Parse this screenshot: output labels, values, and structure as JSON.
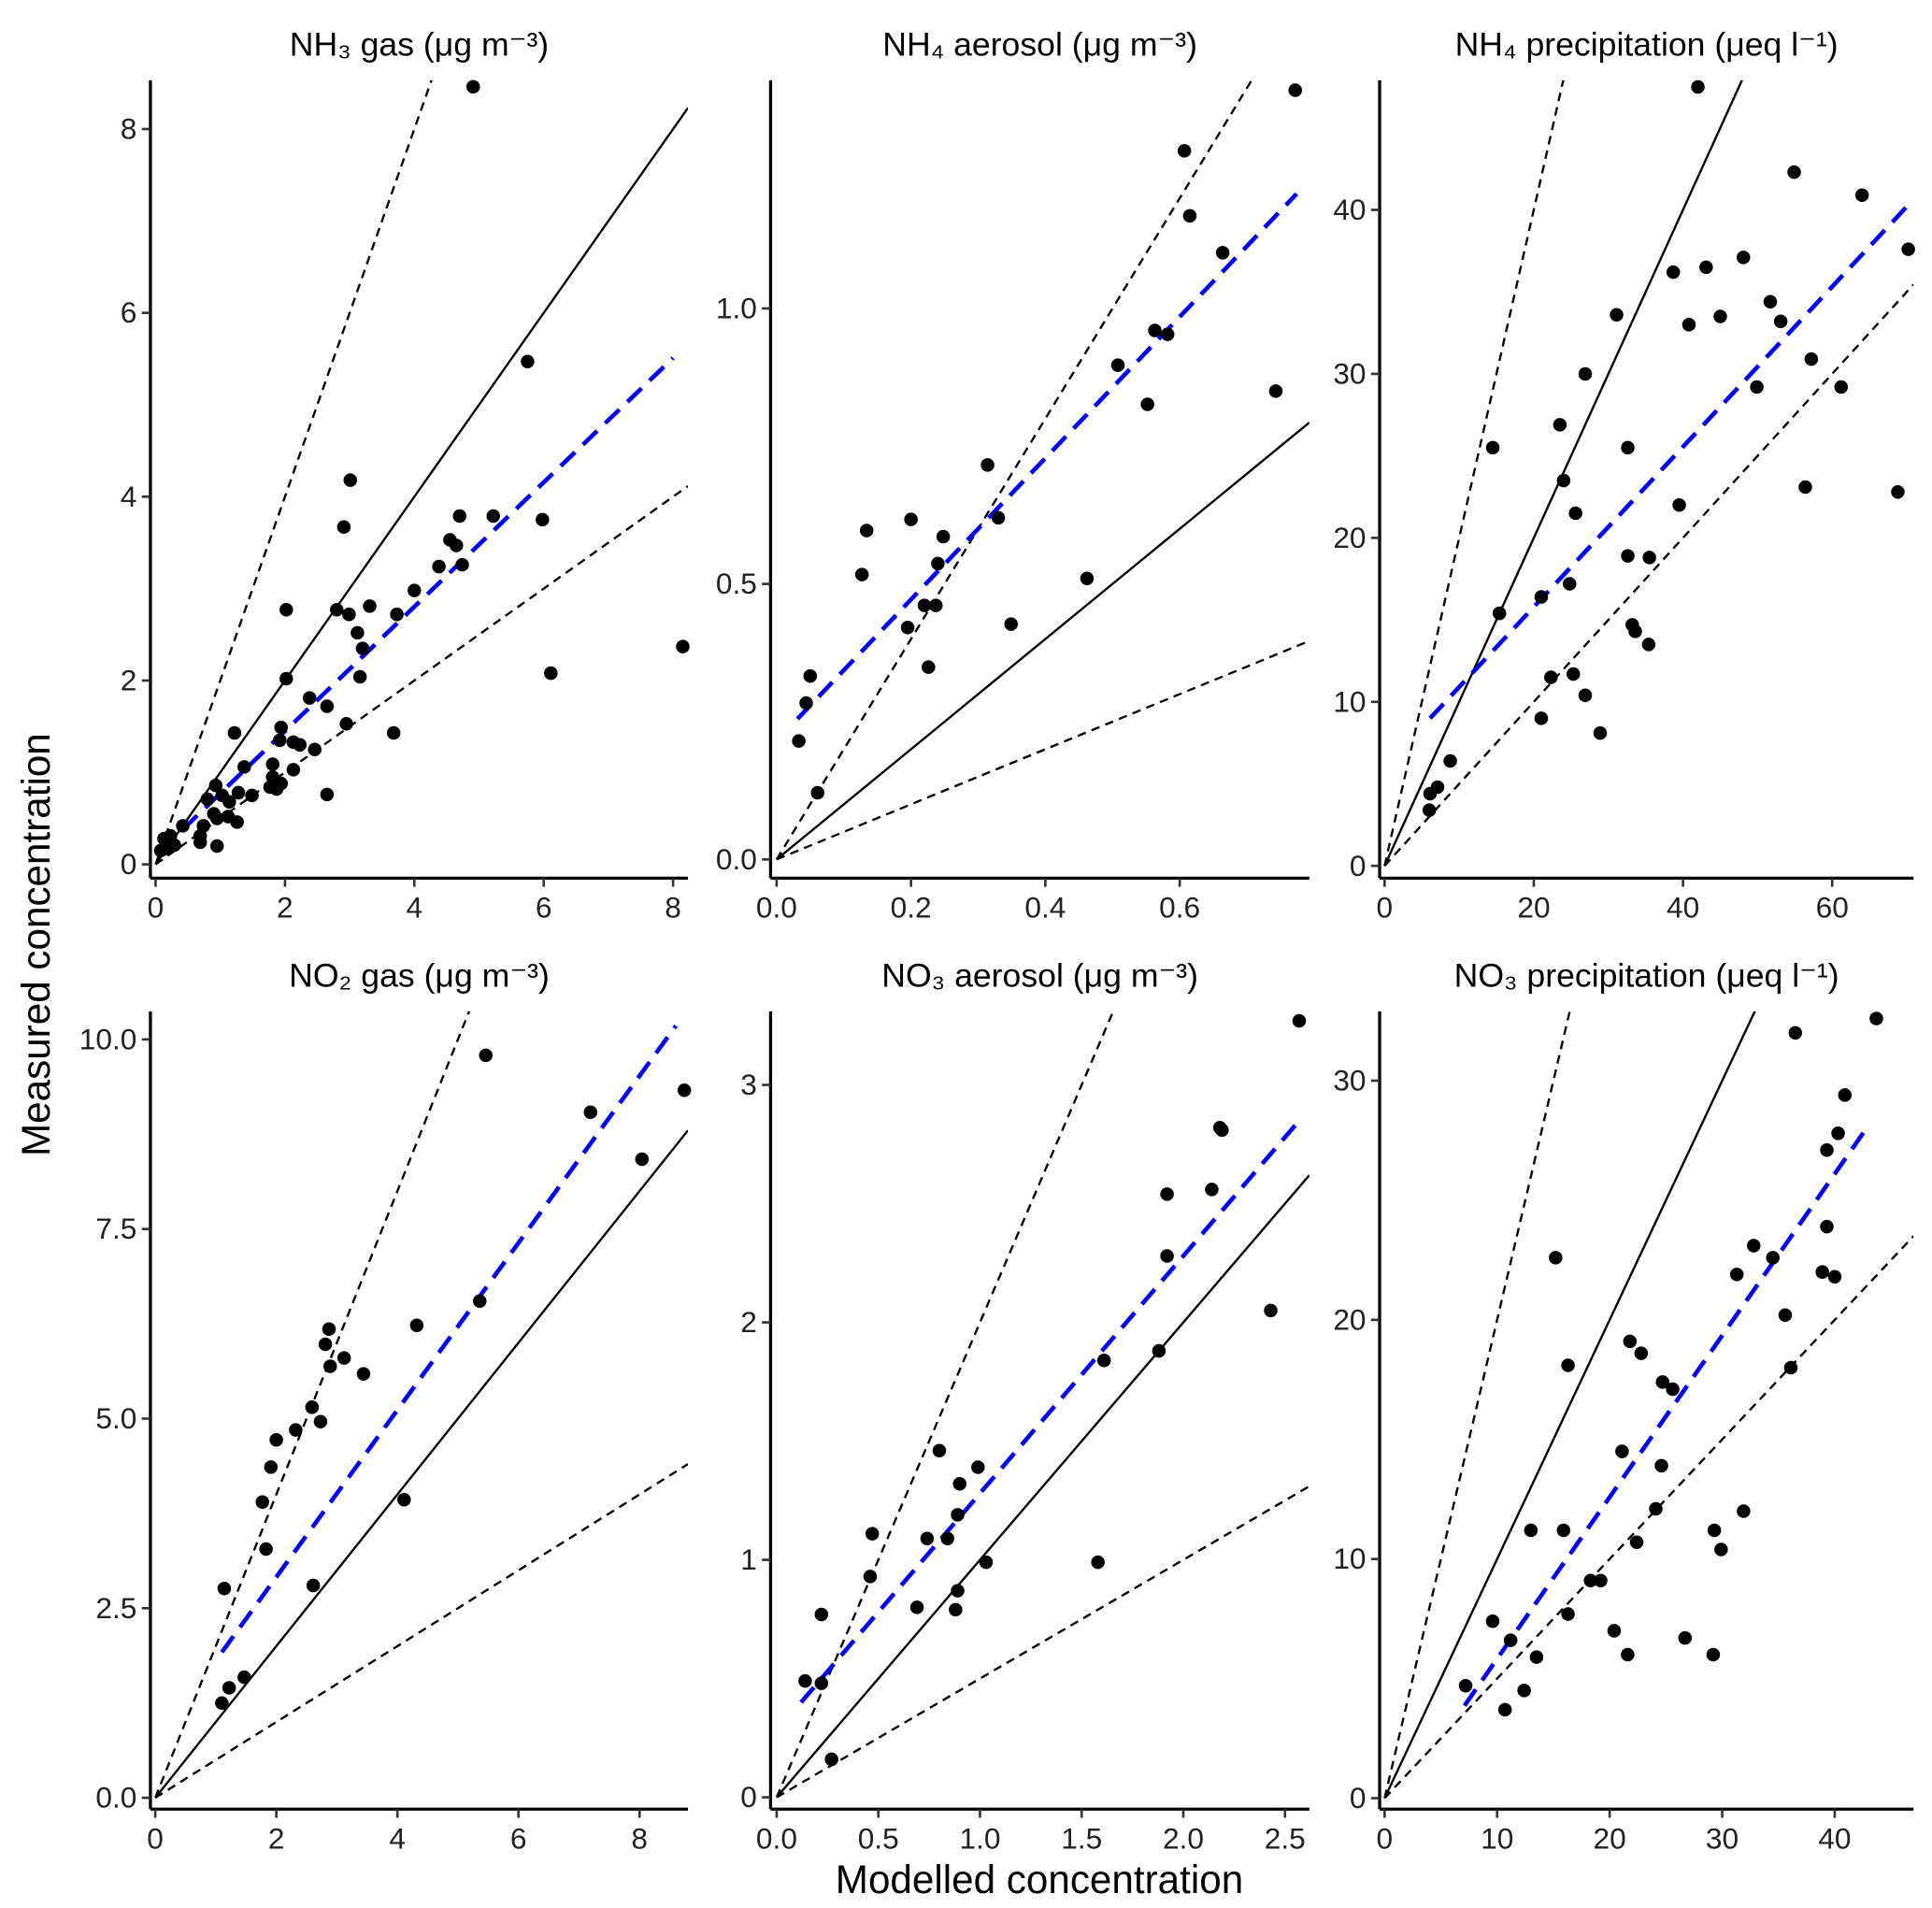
{
  "axis_labels": {
    "x": "Modelled concentration",
    "y": "Measured concentration"
  },
  "chart_data": [
    {
      "type": "scatter",
      "title": "NH₃ gas (μg m⁻³)",
      "color": "#000000",
      "x": [
        4.91,
        5.75,
        3.01,
        2.91,
        2.02,
        2.8,
        2.99,
        3.31,
        3.73,
        4.0,
        3.12,
        3.2,
        3.16,
        2.02,
        2.95,
        3.68,
        4.38,
        4.55,
        4.65,
        4.7,
        4.74,
        5.22,
        5.98,
        6.11,
        8.15,
        2.65,
        2.65,
        2.38,
        2.46,
        2.13,
        2.23,
        2.13,
        1.94,
        1.92,
        1.81,
        1.81,
        1.77,
        1.87,
        1.94,
        1.22,
        1.37,
        1.28,
        1.14,
        1.26,
        1.49,
        0.93,
        1.03,
        0.8,
        0.9,
        0.95,
        0.74,
        0.42,
        0.69,
        0.69,
        0.95,
        0.13,
        0.23,
        0.29,
        0.08,
        0.19,
        1.12
      ],
      "y": [
        8.46,
        5.47,
        4.18,
        3.67,
        2.77,
        2.77,
        2.72,
        2.81,
        2.72,
        2.98,
        2.52,
        2.35,
        2.04,
        2.02,
        1.53,
        1.43,
        3.24,
        3.53,
        3.47,
        3.79,
        3.26,
        3.79,
        3.75,
        2.08,
        2.37,
        1.72,
        0.76,
        1.81,
        1.25,
        1.33,
        1.3,
        1.03,
        1.49,
        1.35,
        1.09,
        0.95,
        0.84,
        0.82,
        0.88,
        1.43,
        1.06,
        0.78,
        0.68,
        0.46,
        0.75,
        0.86,
        0.75,
        0.71,
        0.55,
        0.5,
        0.42,
        0.42,
        0.31,
        0.24,
        0.2,
        0.28,
        0.31,
        0.21,
        0.15,
        0.17,
        0.52
      ],
      "xlim": [
        -0.08,
        8.23
      ],
      "ylim": [
        -0.15,
        8.53
      ],
      "xticks": [
        0,
        2,
        4,
        6,
        8
      ],
      "yticks": [
        0,
        2,
        4,
        6,
        8
      ],
      "reference_lines": [
        {
          "slope": 1,
          "style": "solid"
        },
        {
          "slope": 2,
          "style": "dashed"
        },
        {
          "slope": 0.5,
          "style": "dashed"
        }
      ],
      "fit": {
        "x": [
          0.08,
          8.0
        ],
        "y": [
          0.15,
          5.51
        ],
        "color": "#0000ff",
        "style": "dashed"
      }
    },
    {
      "type": "scatter",
      "title": "NH₄ aerosol (μg m⁻³)",
      "color": "#000000",
      "x": [
        0.772,
        0.607,
        0.615,
        0.664,
        0.563,
        0.582,
        0.508,
        0.552,
        0.743,
        0.314,
        0.33,
        0.134,
        0.2,
        0.248,
        0.24,
        0.127,
        0.462,
        0.22,
        0.237,
        0.195,
        0.349,
        0.226,
        0.05,
        0.044,
        0.033,
        0.061
      ],
      "y": [
        1.396,
        1.286,
        1.168,
        1.101,
        0.96,
        0.953,
        0.897,
        0.826,
        0.85,
        0.716,
        0.62,
        0.597,
        0.617,
        0.586,
        0.537,
        0.517,
        0.51,
        0.461,
        0.461,
        0.421,
        0.427,
        0.349,
        0.333,
        0.284,
        0.215,
        0.121
      ],
      "xlim": [
        -0.009,
        0.793
      ],
      "ylim": [
        -0.034,
        1.414
      ],
      "xticks": [
        {
          "value": 0,
          "label": "0.0"
        },
        0.2,
        0.4,
        0.6
      ],
      "yticks": [
        {
          "value": 0,
          "label": "0.0"
        },
        0.5,
        {
          "value": 1,
          "label": "1.0"
        }
      ],
      "reference_lines": [
        {
          "slope": 1,
          "style": "solid"
        },
        {
          "slope": 2,
          "style": "dashed"
        },
        {
          "slope": 0.5,
          "style": "dashed"
        }
      ],
      "fit": {
        "x": [
          0.031,
          0.774
        ],
        "y": [
          0.255,
          1.208
        ],
        "color": "#0000ff",
        "style": "dashed"
      }
    },
    {
      "type": "scatter",
      "title": "NH₄ precipitation (μeq l⁻¹)",
      "color": "#000000",
      "x": [
        42.0,
        54.9,
        64.0,
        70.2,
        38.7,
        43.1,
        48.1,
        31.1,
        40.8,
        45.0,
        51.7,
        53.1,
        26.9,
        57.2,
        49.9,
        61.2,
        68.8,
        56.4,
        23.5,
        14.5,
        32.6,
        24.0,
        39.5,
        25.6,
        32.6,
        35.5,
        21.0,
        24.8,
        15.4,
        33.2,
        33.6,
        35.4,
        22.3,
        25.3,
        21.0,
        26.9,
        28.9,
        8.8,
        7.1,
        6.1,
        6.0
      ],
      "y": [
        47.5,
        42.3,
        40.9,
        37.6,
        36.2,
        36.5,
        37.1,
        33.6,
        33.0,
        33.5,
        34.4,
        33.2,
        30.0,
        30.9,
        29.2,
        29.2,
        22.8,
        23.1,
        26.9,
        25.5,
        25.5,
        23.5,
        22.0,
        21.5,
        18.9,
        18.8,
        16.4,
        17.2,
        15.4,
        14.7,
        14.3,
        13.5,
        11.5,
        11.7,
        9.0,
        10.4,
        8.1,
        6.4,
        4.8,
        4.4,
        3.4
      ],
      "xlim": [
        -0.66,
        70.9
      ],
      "ylim": [
        -0.75,
        47.9
      ],
      "xticks": [
        0,
        20,
        40,
        60
      ],
      "yticks": [
        0,
        10,
        20,
        30,
        40
      ],
      "reference_lines": [
        {
          "slope": 1,
          "style": "solid"
        },
        {
          "slope": 2,
          "style": "dashed"
        },
        {
          "slope": 0.5,
          "style": "dashed"
        }
      ],
      "fit": {
        "x": [
          6.1,
          70.2
        ],
        "y": [
          9.0,
          40.3
        ],
        "color": "#0000ff",
        "style": "dashed"
      }
    },
    {
      "type": "scatter",
      "title": "NO₂ gas (μg m⁻³)",
      "color": "#000000",
      "x": [
        5.46,
        7.19,
        8.74,
        8.04,
        5.36,
        4.32,
        2.87,
        2.81,
        2.89,
        3.12,
        3.44,
        2.59,
        2.73,
        2.32,
        2.0,
        1.91,
        1.77,
        1.83,
        1.14,
        2.61,
        4.11,
        1.47,
        1.22,
        1.1
      ],
      "y": [
        9.79,
        9.04,
        9.33,
        8.42,
        6.55,
        6.23,
        6.18,
        5.98,
        5.69,
        5.8,
        5.59,
        5.15,
        4.96,
        4.85,
        4.72,
        4.36,
        3.9,
        3.28,
        2.76,
        2.8,
        3.93,
        1.59,
        1.45,
        1.25
      ],
      "xlim": [
        -0.08,
        8.8
      ],
      "ylim": [
        -0.15,
        10.37
      ],
      "xticks": [
        0,
        2,
        4,
        6,
        8
      ],
      "yticks": [
        {
          "value": 0,
          "label": "0.0"
        },
        2.5,
        {
          "value": 5,
          "label": "5.0"
        },
        7.5,
        {
          "value": 10,
          "label": "10.0"
        }
      ],
      "reference_lines": [
        {
          "slope": 1,
          "style": "solid"
        },
        {
          "slope": 2,
          "style": "dashed"
        },
        {
          "slope": 0.5,
          "style": "dashed"
        }
      ],
      "fit": {
        "x": [
          1.1,
          8.6
        ],
        "y": [
          1.92,
          10.18
        ],
        "color": "#0000ff",
        "style": "dashed"
      }
    },
    {
      "type": "scatter",
      "title": "NO₃ aerosol (μg m⁻³)",
      "color": "#000000",
      "x": [
        2.57,
        2.18,
        2.19,
        1.92,
        2.14,
        1.92,
        2.43,
        1.88,
        1.61,
        0.8,
        0.99,
        0.9,
        0.89,
        0.74,
        0.84,
        0.47,
        0.46,
        1.03,
        1.58,
        0.89,
        0.69,
        0.88,
        0.22,
        0.14,
        0.22,
        0.27
      ],
      "y": [
        3.27,
        2.82,
        2.81,
        2.28,
        2.56,
        2.54,
        2.05,
        1.88,
        1.84,
        1.46,
        1.39,
        1.32,
        1.19,
        1.09,
        1.09,
        1.11,
        0.93,
        0.99,
        0.99,
        0.87,
        0.8,
        0.79,
        0.77,
        0.49,
        0.48,
        0.16
      ],
      "xlim": [
        -0.03,
        2.62
      ],
      "ylim": [
        -0.05,
        3.31
      ],
      "xticks": [
        {
          "value": 0,
          "label": "0.0"
        },
        0.5,
        {
          "value": 1,
          "label": "1.0"
        },
        1.5,
        {
          "value": 2,
          "label": "2.0"
        },
        2.5
      ],
      "yticks": [
        0,
        1,
        2,
        3
      ],
      "reference_lines": [
        {
          "slope": 1,
          "style": "solid"
        },
        {
          "slope": 2,
          "style": "dashed"
        },
        {
          "slope": 0.5,
          "style": "dashed"
        }
      ],
      "fit": {
        "x": [
          0.12,
          2.56
        ],
        "y": [
          0.4,
          2.84
        ],
        "color": "#0000ff",
        "style": "dashed"
      }
    },
    {
      "type": "scatter",
      "title": "NO₃ precipitation (μeq l⁻¹)",
      "color": "#000000",
      "x": [
        43.7,
        36.5,
        40.9,
        40.3,
        39.3,
        39.3,
        38.9,
        40.0,
        31.3,
        32.8,
        34.5,
        35.6,
        36.1,
        15.2,
        16.3,
        21.8,
        22.8,
        24.7,
        25.6,
        21.1,
        24.6,
        13.0,
        15.9,
        24.1,
        31.9,
        29.3,
        29.9,
        22.4,
        18.3,
        19.2,
        9.6,
        16.3,
        20.4,
        11.2,
        26.7,
        21.6,
        29.2,
        13.5,
        12.4,
        7.2,
        10.7
      ],
      "y": [
        32.6,
        32.0,
        29.4,
        27.8,
        27.1,
        23.9,
        22.0,
        21.8,
        21.9,
        23.1,
        22.6,
        20.2,
        18.0,
        22.6,
        18.1,
        19.1,
        18.6,
        17.4,
        17.1,
        14.5,
        13.9,
        11.2,
        11.2,
        12.1,
        12.0,
        11.2,
        10.4,
        10.7,
        9.1,
        9.1,
        7.4,
        7.7,
        7.0,
        6.6,
        6.7,
        6.0,
        6.0,
        5.9,
        4.5,
        4.7,
        3.7
      ],
      "xlim": [
        -0.44,
        47.0
      ],
      "ylim": [
        -0.46,
        32.9
      ],
      "xticks": [
        0,
        10,
        20,
        30,
        40
      ],
      "yticks": [
        0,
        10,
        20,
        30
      ],
      "reference_lines": [
        {
          "slope": 1,
          "style": "solid"
        },
        {
          "slope": 2,
          "style": "dashed"
        },
        {
          "slope": 0.5,
          "style": "dashed"
        }
      ],
      "fit": {
        "x": [
          7.1,
          43.1
        ],
        "y": [
          3.87,
          28.2
        ],
        "color": "#0000ff",
        "style": "dashed"
      }
    }
  ]
}
